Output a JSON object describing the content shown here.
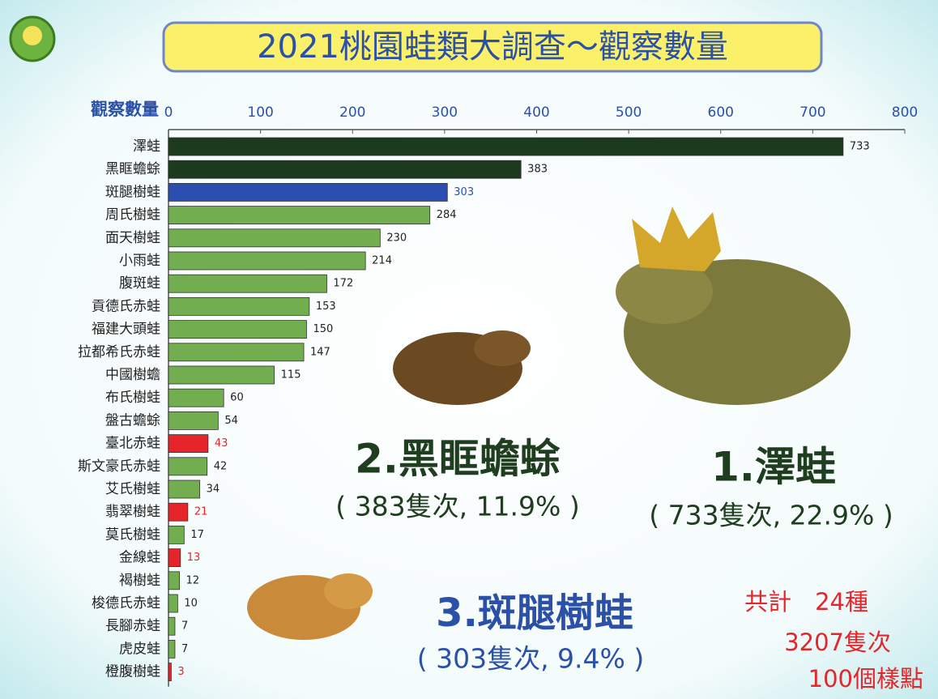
{
  "chart_data": {
    "type": "bar",
    "orientation": "horizontal",
    "title": "2021桃園蛙類大調查～觀察數量",
    "x_label": "觀察數量",
    "categories": [
      "澤蛙",
      "黑眶蟾蜍",
      "斑腿樹蛙",
      "周氏樹蛙",
      "面天樹蛙",
      "小雨蛙",
      "腹斑蛙",
      "貢德氏赤蛙",
      "福建大頭蛙",
      "拉都希氏赤蛙",
      "中國樹蟾",
      "布氏樹蛙",
      "盤古蟾蜍",
      "臺北赤蛙",
      "斯文豪氏赤蛙",
      "艾氏樹蛙",
      "翡翠樹蛙",
      "莫氏樹蛙",
      "金線蛙",
      "褐樹蛙",
      "梭德氏赤蛙",
      "長腳赤蛙",
      "虎皮蛙",
      "橙腹樹蛙"
    ],
    "values": [
      733,
      383,
      303,
      284,
      230,
      214,
      172,
      153,
      150,
      147,
      115,
      60,
      54,
      43,
      42,
      34,
      21,
      17,
      13,
      12,
      10,
      7,
      7,
      3
    ],
    "colors": [
      "#1b3a1e",
      "#1b3a1e",
      "#2a4fb0",
      "#72ad4f",
      "#72ad4f",
      "#72ad4f",
      "#72ad4f",
      "#72ad4f",
      "#72ad4f",
      "#72ad4f",
      "#72ad4f",
      "#72ad4f",
      "#72ad4f",
      "#e5252a",
      "#72ad4f",
      "#72ad4f",
      "#e5252a",
      "#72ad4f",
      "#e5252a",
      "#72ad4f",
      "#72ad4f",
      "#72ad4f",
      "#72ad4f",
      "#e5252a"
    ],
    "label_colors": [
      "#222",
      "#222",
      "#2a4fb0",
      "#222",
      "#222",
      "#222",
      "#222",
      "#222",
      "#222",
      "#222",
      "#222",
      "#222",
      "#222",
      "#e5252a",
      "#222",
      "#222",
      "#e5252a",
      "#222",
      "#e5252a",
      "#222",
      "#222",
      "#222",
      "#222",
      "#e5252a"
    ],
    "xlim": [
      0,
      800
    ],
    "xticks": [
      0,
      100,
      200,
      300,
      400,
      500,
      600,
      700,
      800
    ],
    "annotations": [
      "2.黑眶蟾蜍",
      "( 383隻次, 11.9% )",
      "1.澤蛙",
      "( 733隻次, 22.9% )",
      "3.斑腿樹蛙",
      "( 303隻次, 9.4% )",
      "共計　24種",
      "3207隻次",
      "100個樣點"
    ]
  }
}
